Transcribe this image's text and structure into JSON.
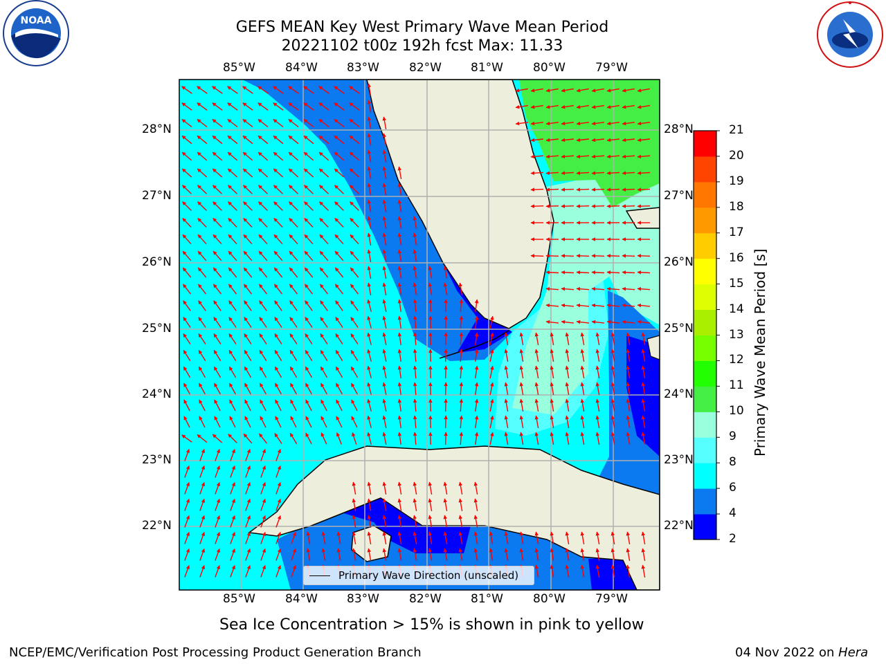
{
  "header": {
    "title_line1": "GEFS MEAN Key West Primary Wave Mean Period",
    "title_line2": "20221102 t00z 192h fcst   Max: 11.33"
  },
  "logos": {
    "noaa_text": "NOAA",
    "noaa_ring_text": "NATIONAL OCEANIC AND ATMOSPHERIC ADMINISTRATION · U.S. DEPARTMENT OF COMMERCE",
    "nws_ring_text": "NATIONAL WEATHER SERVICE"
  },
  "map": {
    "lon_labels": [
      "85°W",
      "84°W",
      "83°W",
      "82°W",
      "81°W",
      "80°W",
      "79°W"
    ],
    "lat_labels": [
      "28°N",
      "27°N",
      "26°N",
      "25°N",
      "24°N",
      "23°N",
      "22°N"
    ],
    "legend_label": "Primary Wave Direction (unscaled)"
  },
  "colorbar": {
    "label": "Primary Wave Mean Period [s]",
    "ticks": [
      "21",
      "20",
      "19",
      "18",
      "17",
      "16",
      "15",
      "14",
      "13",
      "12",
      "11",
      "10",
      "9",
      "8",
      "6",
      "4",
      "2"
    ],
    "colors": [
      "#0000ff",
      "#0b7af0",
      "#00ffff",
      "#55ffff",
      "#99ffdd",
      "#44ee44",
      "#22ff00",
      "#77ff00",
      "#aaee00",
      "#ddff00",
      "#ffff00",
      "#ffcc00",
      "#ff9900",
      "#ff7700",
      "#ff4400",
      "#ff0000"
    ]
  },
  "chart_data": {
    "type": "heatmap",
    "title": "GEFS MEAN Key West Primary Wave Mean Period",
    "subtitle": "20221102 t00z 192h fcst   Max: 11.33",
    "x_ticks": [
      "85°W",
      "84°W",
      "83°W",
      "82°W",
      "81°W",
      "80°W",
      "79°W"
    ],
    "y_ticks": [
      "28°N",
      "27°N",
      "26°N",
      "25°N",
      "24°N",
      "23°N",
      "22°N"
    ],
    "colorbar_label": "Primary Wave Mean Period [s]",
    "colorbar_levels": [
      2,
      4,
      6,
      8,
      9,
      10,
      11,
      12,
      13,
      14,
      15,
      16,
      17,
      18,
      19,
      20,
      21
    ],
    "max_value": 11.33,
    "legend": "Primary Wave Direction (unscaled)",
    "legend_position": "bottom-center",
    "grid": true
  },
  "footer": {
    "caption": "Sea Ice Concentration > 15% is shown in pink to yellow",
    "left": "NCEP/EMC/Verification Post Processing Product Generation Branch",
    "right_prefix": "04 Nov 2022 on ",
    "right_machine": "Hera"
  }
}
